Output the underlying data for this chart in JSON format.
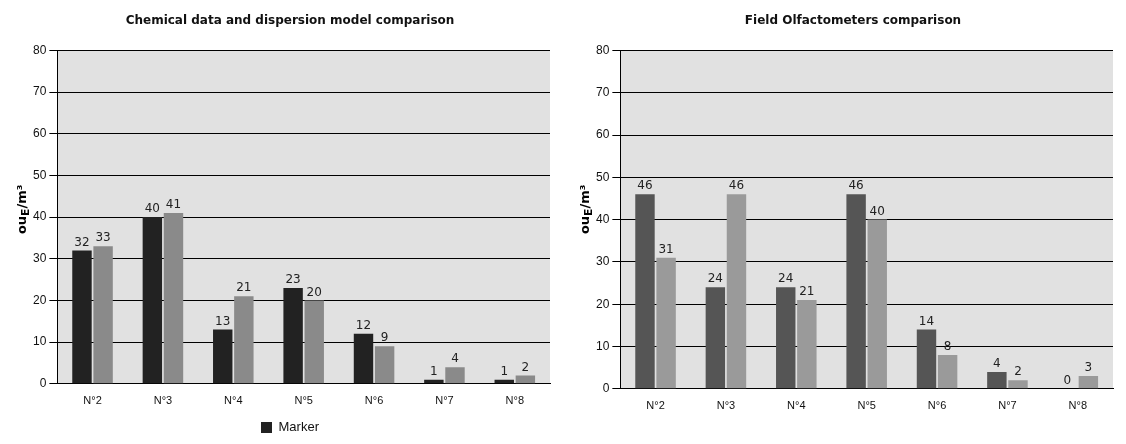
{
  "chart_data": [
    {
      "type": "bar",
      "title": "Chemical data and dispersion model comparison",
      "ylabel": "ou$_{E}$/m³",
      "categories": [
        "N°2",
        "N°3",
        "N°4",
        "N°5",
        "N°6",
        "N°7",
        "N°8"
      ],
      "series": [
        {
          "name": "Marker",
          "color": "#222222",
          "values": [
            32,
            40,
            13,
            23,
            12,
            1,
            1
          ]
        },
        {
          "color": "#8a8a8a",
          "values": [
            33,
            41,
            21,
            20,
            9,
            4,
            2
          ]
        }
      ],
      "ylim": [
        0,
        80
      ],
      "yticks": [
        0,
        10,
        20,
        30,
        40,
        50,
        60,
        70,
        80
      ],
      "grid": "y",
      "legend": "bottom",
      "data_labels": true
    },
    {
      "type": "bar",
      "title": "Field Olfactometers comparison",
      "ylabel": "ou$_{E}$/m³",
      "categories": [
        "N°2",
        "N°3",
        "N°4",
        "N°5",
        "N°6",
        "N°7",
        "N°8"
      ],
      "series": [
        {
          "color": "#555555",
          "values": [
            46,
            24,
            24,
            46,
            14,
            4,
            0
          ]
        },
        {
          "color": "#9a9a9a",
          "values": [
            31,
            46,
            21,
            40,
            8,
            2,
            3
          ]
        }
      ],
      "ylim": [
        0,
        80
      ],
      "yticks": [
        0,
        10,
        20,
        30,
        40,
        50,
        60,
        70,
        80
      ],
      "grid": "y",
      "data_labels": true
    }
  ]
}
